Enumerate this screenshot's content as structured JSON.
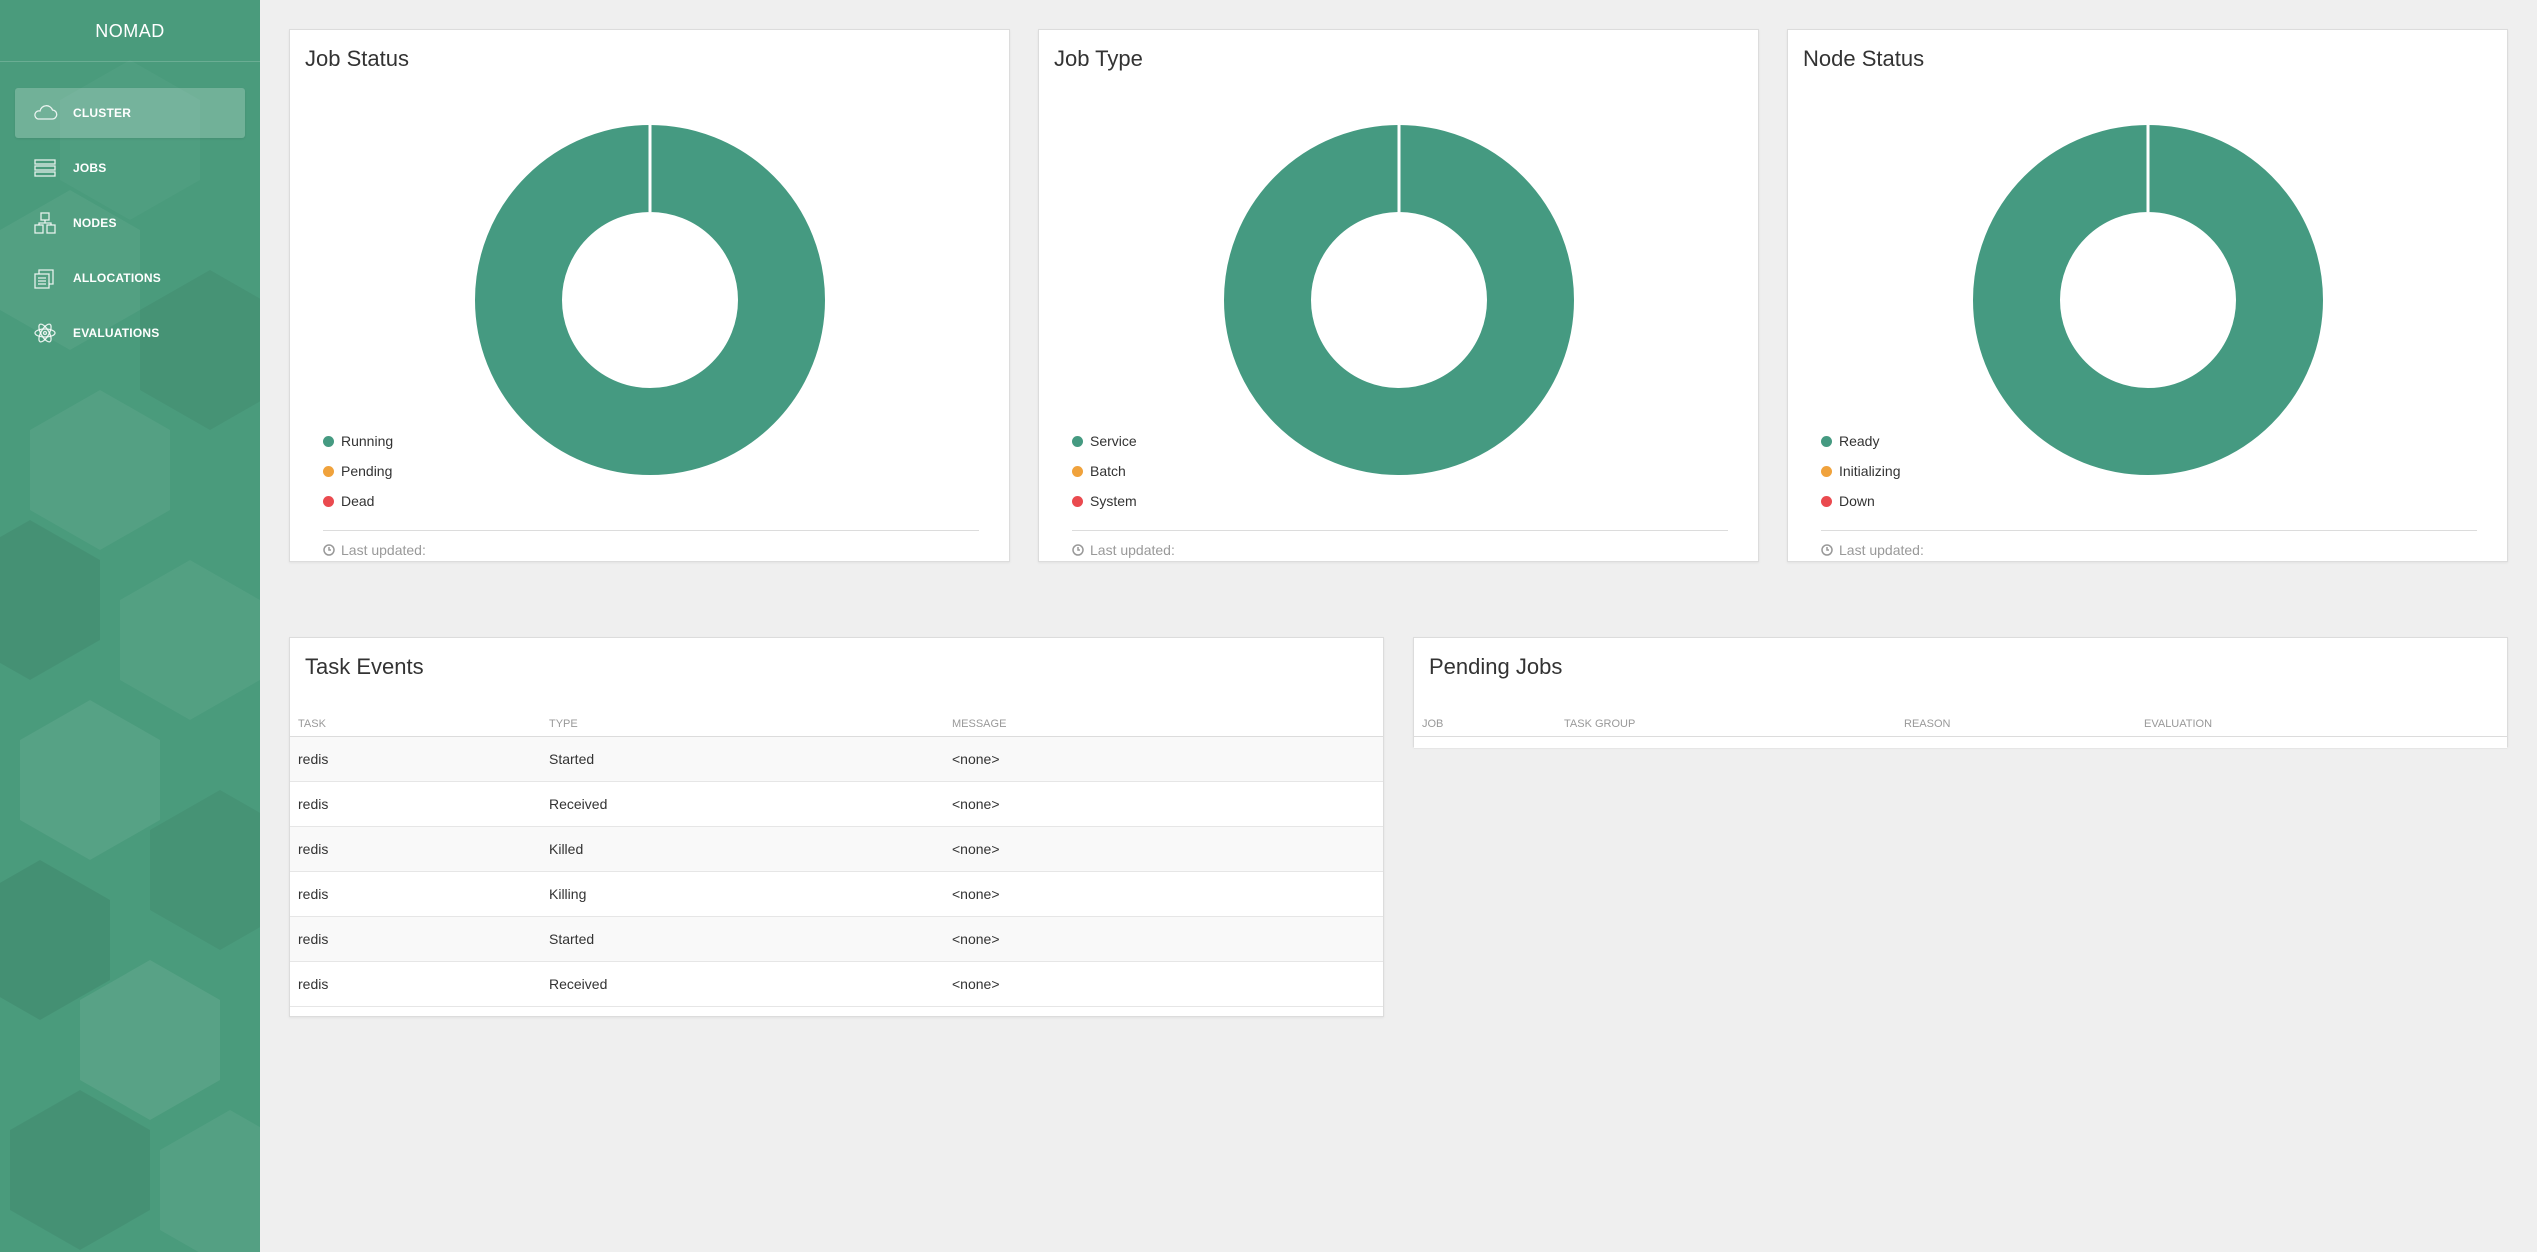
{
  "app": {
    "brand": "NOMAD"
  },
  "sidebar": {
    "items": [
      {
        "label": "CLUSTER",
        "icon": "cloud-icon",
        "active": true
      },
      {
        "label": "JOBS",
        "icon": "stack-icon",
        "active": false
      },
      {
        "label": "NODES",
        "icon": "nodes-icon",
        "active": false
      },
      {
        "label": "ALLOCATIONS",
        "icon": "allocations-icon",
        "active": false
      },
      {
        "label": "EVALUATIONS",
        "icon": "atom-icon",
        "active": false
      }
    ]
  },
  "colors": {
    "green": "#459a81",
    "orange": "#f0a23c",
    "red": "#ea4a4f",
    "sidebar": "#4a9b7c"
  },
  "job_status": {
    "title": "Job Status",
    "legend": [
      "Running",
      "Pending",
      "Dead"
    ],
    "last_updated": "Last updated:"
  },
  "job_type": {
    "title": "Job Type",
    "legend": [
      "Service",
      "Batch",
      "System"
    ],
    "last_updated": "Last updated:"
  },
  "node_status": {
    "title": "Node Status",
    "legend": [
      "Ready",
      "Initializing",
      "Down"
    ],
    "last_updated": "Last updated:"
  },
  "chart_data": [
    {
      "type": "pie",
      "categories": [
        "Running",
        "Pending",
        "Dead"
      ],
      "values": [
        1,
        0,
        0
      ]
    },
    {
      "type": "pie",
      "categories": [
        "Service",
        "Batch",
        "System"
      ],
      "values": [
        1,
        0,
        0
      ]
    },
    {
      "type": "pie",
      "categories": [
        "Ready",
        "Initializing",
        "Down"
      ],
      "values": [
        1,
        0,
        0
      ]
    }
  ],
  "task_events": {
    "title": "Task Events",
    "columns": [
      "TASK",
      "TYPE",
      "MESSAGE"
    ],
    "rows": [
      [
        "redis",
        "Started",
        "<none>"
      ],
      [
        "redis",
        "Received",
        "<none>"
      ],
      [
        "redis",
        "Killed",
        "<none>"
      ],
      [
        "redis",
        "Killing",
        "<none>"
      ],
      [
        "redis",
        "Started",
        "<none>"
      ],
      [
        "redis",
        "Received",
        "<none>"
      ]
    ]
  },
  "pending_jobs": {
    "title": "Pending Jobs",
    "columns": [
      "JOB",
      "TASK GROUP",
      "REASON",
      "EVALUATION"
    ],
    "rows": []
  }
}
